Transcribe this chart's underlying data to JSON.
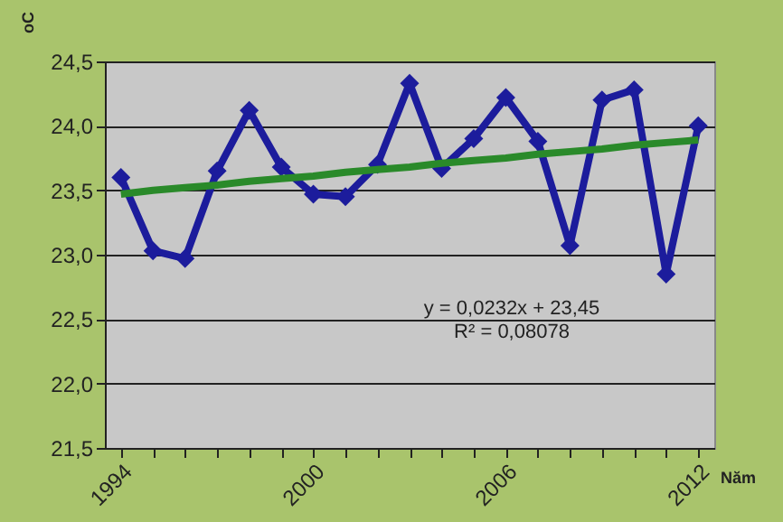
{
  "chart_data": {
    "type": "line",
    "categories": [
      "1994",
      null,
      null,
      null,
      null,
      null,
      "2000",
      null,
      null,
      null,
      null,
      null,
      "2006",
      null,
      null,
      null,
      null,
      null,
      "2012"
    ],
    "series": [
      {
        "color": "#1c1c9c",
        "marker": "diamond",
        "values": [
          23.6,
          23.03,
          22.97,
          23.65,
          24.12,
          23.68,
          23.47,
          23.45,
          23.7,
          24.33,
          23.67,
          23.9,
          24.22,
          23.88,
          23.07,
          24.2,
          24.28,
          22.85,
          24.0
        ]
      },
      {
        "color": "#2a8a2a",
        "marker": "none",
        "values": [
          23.47,
          23.5,
          23.52,
          23.54,
          23.57,
          23.59,
          23.61,
          23.64,
          23.66,
          23.68,
          23.71,
          23.73,
          23.75,
          23.78,
          23.8,
          23.82,
          23.85,
          23.87,
          23.89
        ]
      }
    ],
    "ylabel": "oC",
    "xlabel": "Năm",
    "ylim": [
      21.5,
      24.5
    ],
    "yticks": [
      {
        "value": 21.5,
        "label": "21,5"
      },
      {
        "value": 22,
        "label": "22,0"
      },
      {
        "value": 22.5,
        "label": "22,5"
      },
      {
        "value": 23,
        "label": "23,0"
      },
      {
        "value": 23.5,
        "label": "23,5"
      },
      {
        "value": 24,
        "label": "24,0"
      },
      {
        "value": 24.5,
        "label": "24,5"
      }
    ],
    "grid": "y",
    "annotations": [
      "y = 0,0232x + 23,45",
      "R² = 0,08078"
    ]
  }
}
